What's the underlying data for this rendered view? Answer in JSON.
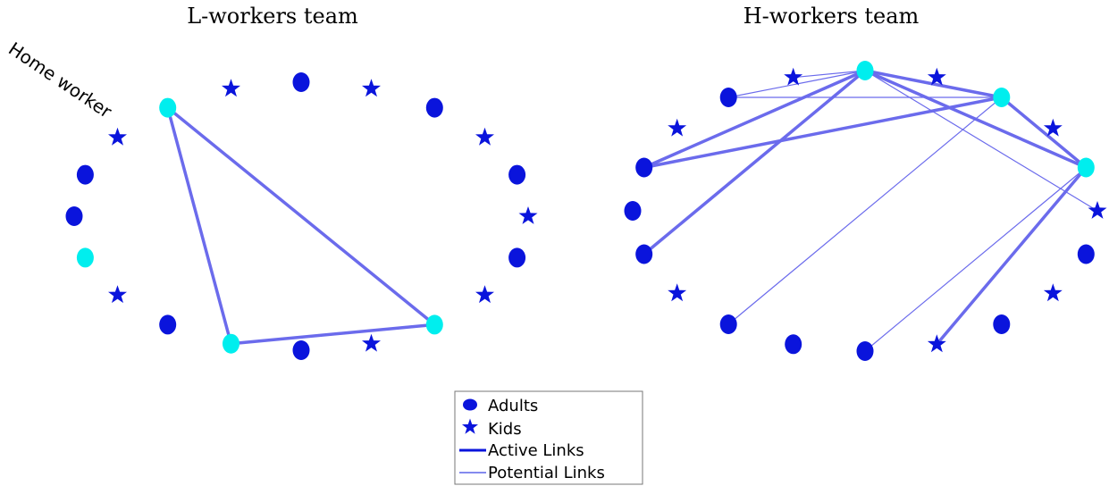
{
  "colors": {
    "adult": "#0a14dc",
    "kid": "#0a14dc",
    "home_worker": "#00eeee",
    "link": "#6b6bec"
  },
  "panels": [
    {
      "title": "L-workers team",
      "annotation": "Home worker",
      "nodes": [
        {
          "id": "l0",
          "kind": "adult"
        },
        {
          "id": "l1",
          "kind": "adult"
        },
        {
          "id": "l2",
          "kind": "kid"
        },
        {
          "id": "l3",
          "kind": "home_worker"
        },
        {
          "id": "l4",
          "kind": "kid"
        },
        {
          "id": "l5",
          "kind": "adult"
        },
        {
          "id": "l6",
          "kind": "kid"
        },
        {
          "id": "l7",
          "kind": "adult"
        },
        {
          "id": "l8",
          "kind": "kid"
        },
        {
          "id": "l9",
          "kind": "adult"
        },
        {
          "id": "l10",
          "kind": "kid"
        },
        {
          "id": "l11",
          "kind": "adult"
        },
        {
          "id": "l12",
          "kind": "kid"
        },
        {
          "id": "l13",
          "kind": "home_worker"
        },
        {
          "id": "l14",
          "kind": "kid"
        },
        {
          "id": "l15",
          "kind": "adult"
        },
        {
          "id": "l16",
          "kind": "home_worker"
        },
        {
          "id": "l17",
          "kind": "adult"
        },
        {
          "id": "l18",
          "kind": "kid"
        },
        {
          "id": "l19",
          "kind": "home_worker"
        }
      ],
      "links": [
        {
          "from": "l3",
          "to": "l16",
          "type": "active"
        },
        {
          "from": "l3",
          "to": "l13",
          "type": "active"
        },
        {
          "from": "l13",
          "to": "l16",
          "type": "active"
        }
      ]
    },
    {
      "title": "H-workers team",
      "nodes": [
        {
          "id": "h0",
          "kind": "adult"
        },
        {
          "id": "h1",
          "kind": "adult"
        },
        {
          "id": "h2",
          "kind": "kid"
        },
        {
          "id": "h3",
          "kind": "adult"
        },
        {
          "id": "h4",
          "kind": "kid"
        },
        {
          "id": "h5",
          "kind": "home_worker"
        },
        {
          "id": "h6",
          "kind": "kid"
        },
        {
          "id": "h7",
          "kind": "home_worker"
        },
        {
          "id": "h8",
          "kind": "kid"
        },
        {
          "id": "h9",
          "kind": "home_worker"
        },
        {
          "id": "h10",
          "kind": "kid"
        },
        {
          "id": "h11",
          "kind": "adult"
        },
        {
          "id": "h12",
          "kind": "kid"
        },
        {
          "id": "h13",
          "kind": "adult"
        },
        {
          "id": "h14",
          "kind": "kid"
        },
        {
          "id": "h15",
          "kind": "adult"
        },
        {
          "id": "h16",
          "kind": "adult"
        },
        {
          "id": "h17",
          "kind": "adult"
        },
        {
          "id": "h18",
          "kind": "kid"
        },
        {
          "id": "h19",
          "kind": "adult"
        }
      ],
      "links": [
        {
          "from": "h1",
          "to": "h5",
          "type": "active"
        },
        {
          "from": "h1",
          "to": "h7",
          "type": "active"
        },
        {
          "from": "h19",
          "to": "h5",
          "type": "active"
        },
        {
          "from": "h5",
          "to": "h7",
          "type": "active"
        },
        {
          "from": "h5",
          "to": "h9",
          "type": "active"
        },
        {
          "from": "h7",
          "to": "h9",
          "type": "active"
        },
        {
          "from": "h14",
          "to": "h9",
          "type": "active"
        },
        {
          "from": "h3",
          "to": "h5",
          "type": "potential"
        },
        {
          "from": "h3",
          "to": "h7",
          "type": "potential"
        },
        {
          "from": "h4",
          "to": "h5",
          "type": "potential"
        },
        {
          "from": "h17",
          "to": "h7",
          "type": "potential"
        },
        {
          "from": "h15",
          "to": "h9",
          "type": "potential"
        },
        {
          "from": "h10",
          "to": "h5",
          "type": "potential"
        },
        {
          "from": "h9",
          "to": "h7",
          "type": "potential"
        }
      ]
    }
  ],
  "legend": {
    "items": [
      {
        "label": "Adults",
        "symbol": "adult"
      },
      {
        "label": "Kids",
        "symbol": "kid"
      },
      {
        "label": "Active Links",
        "symbol": "active"
      },
      {
        "label": "Potential Links",
        "symbol": "potential"
      }
    ]
  }
}
